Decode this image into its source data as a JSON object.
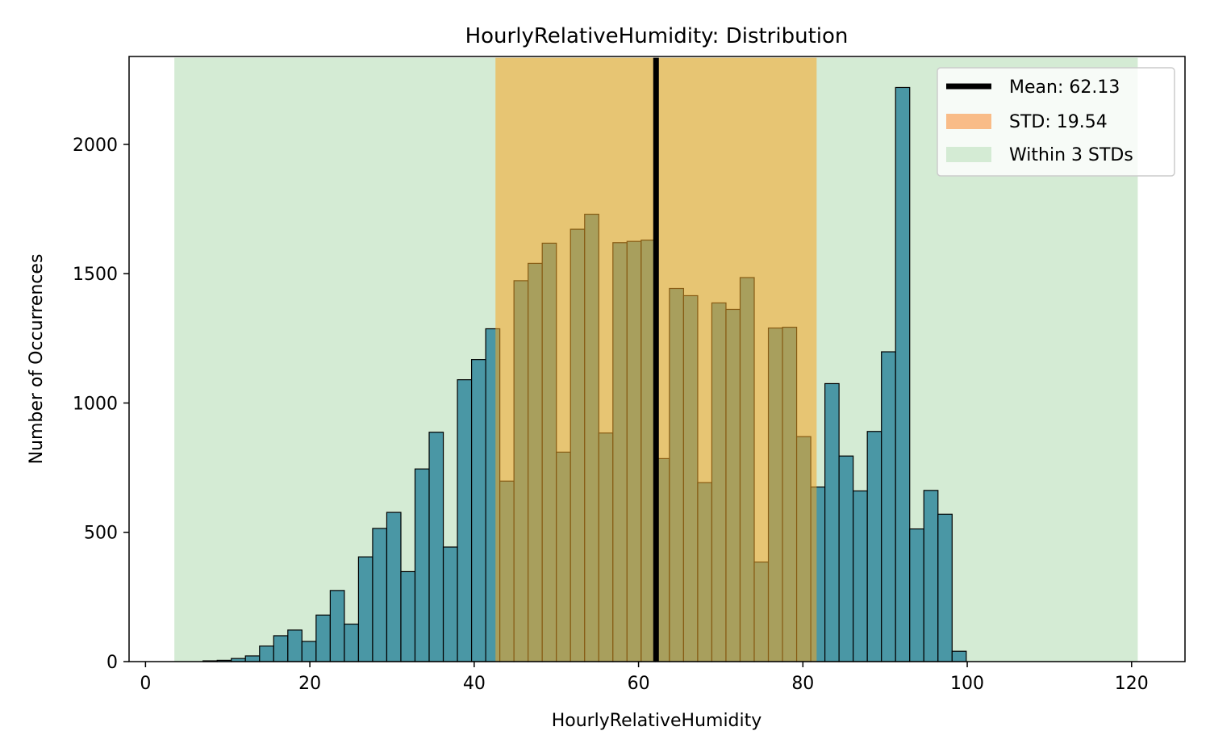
{
  "chart_data": {
    "type": "bar",
    "title": "HourlyRelativeHumidity: Distribution",
    "xlabel": "HourlyRelativeHumidity",
    "ylabel": "Number of Occurrences",
    "xlim": [
      -2.0,
      126.5
    ],
    "ylim": [
      0,
      2340
    ],
    "xticks": [
      0,
      20,
      40,
      60,
      80,
      100,
      120
    ],
    "yticks": [
      0,
      500,
      1000,
      1500,
      2000
    ],
    "bin_start": 7.0,
    "bin_width": 1.72,
    "values": [
      3,
      5,
      12,
      22,
      60,
      100,
      122,
      78,
      180,
      275,
      145,
      405,
      515,
      577,
      348,
      745,
      887,
      443,
      1090,
      1168,
      1287,
      698,
      1473,
      1540,
      1618,
      810,
      1672,
      1730,
      884,
      1620,
      1625,
      1630,
      785,
      1443,
      1415,
      692,
      1387,
      1362,
      1485,
      385,
      1290,
      1293,
      870,
      675,
      1075,
      795,
      660,
      890,
      1198,
      2220,
      513,
      662,
      570,
      40
    ],
    "bar_color": "#4a97a5",
    "bar_edge_color": "#000000",
    "mean": 62.13,
    "std": 19.54,
    "std_band": [
      42.59,
      81.67
    ],
    "three_std_band": [
      3.51,
      120.75
    ],
    "band_top": 2335,
    "mean_color": "#000000",
    "std_color": "#f5a623",
    "three_std_color": "#d4ebd4",
    "grid": false,
    "legend_position": "top-right",
    "legend": [
      {
        "label": "Mean: 62.13",
        "kind": "line",
        "color": "#000000"
      },
      {
        "label": "STD: 19.54",
        "kind": "patch",
        "color": "#f9bc88"
      },
      {
        "label": "Within 3 STDs",
        "kind": "patch",
        "color": "#d4ebd4"
      }
    ]
  }
}
